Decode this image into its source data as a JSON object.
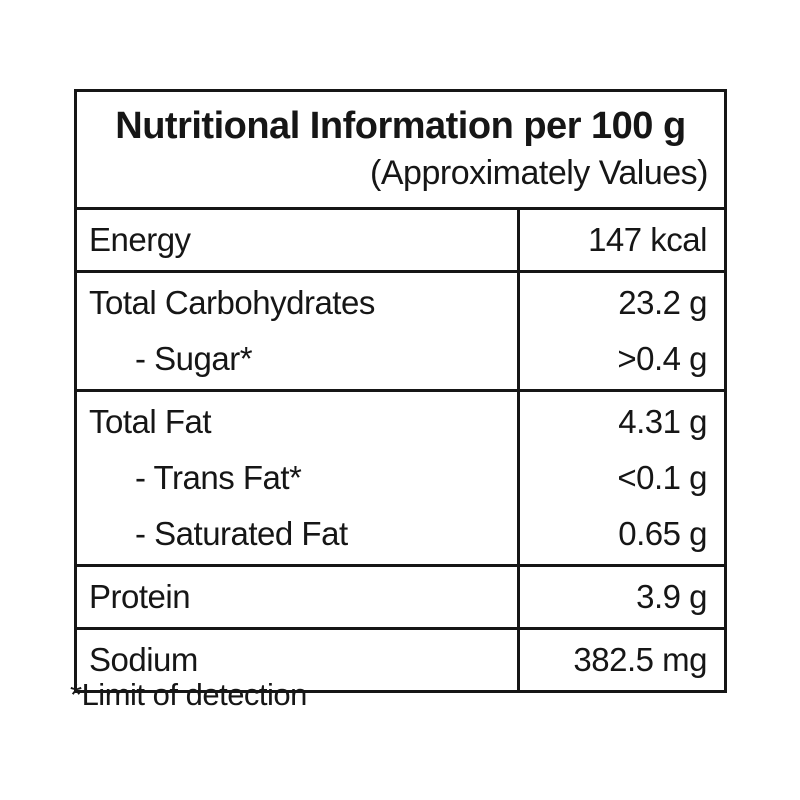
{
  "header": {
    "title": "Nutritional Information per 100 g",
    "subtitle": "(Approximately Values)"
  },
  "rows": [
    {
      "lines": [
        {
          "label": "Energy",
          "value": "147 kcal",
          "indent": false
        }
      ]
    },
    {
      "lines": [
        {
          "label": "Total Carbohydrates",
          "value": "23.2 g",
          "indent": false
        },
        {
          "label": "- Sugar*",
          "value": ">0.4 g",
          "indent": true
        }
      ]
    },
    {
      "lines": [
        {
          "label": "Total Fat",
          "value": "4.31 g",
          "indent": false
        },
        {
          "label": "- Trans Fat*",
          "value": "<0.1 g",
          "indent": true
        },
        {
          "label": "- Saturated Fat",
          "value": "0.65 g",
          "indent": true
        }
      ]
    },
    {
      "lines": [
        {
          "label": "Protein",
          "value": "3.9 g",
          "indent": false
        }
      ]
    },
    {
      "lines": [
        {
          "label": "Sodium",
          "value": "382.5 mg",
          "indent": false
        }
      ]
    }
  ],
  "footnote": "*Limit of detection",
  "colors": {
    "text": "#161616",
    "border": "#161616",
    "background": "#ffffff"
  }
}
